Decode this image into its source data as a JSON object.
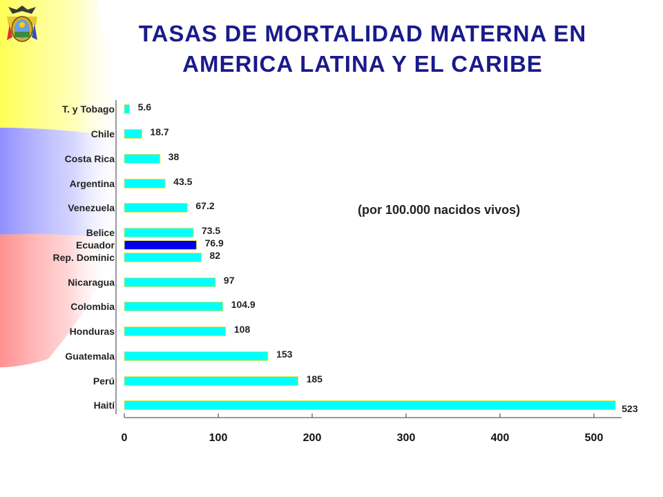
{
  "title_lines": [
    "TASAS DE MORTALIDAD MATERNA EN",
    "AMERICA LATINA Y EL CARIBE"
  ],
  "subtitle": "(por 100.000 nacidos vivos)",
  "colors": {
    "bar": "#00ffff",
    "bar_highlight": "#0000ee",
    "bar_border": "#e6e64c",
    "title": "#1a1a8c",
    "flag_yellow": "#ffff66",
    "flag_blue": "#9999ff",
    "flag_red": "#ff9999"
  },
  "chart_data": {
    "type": "bar",
    "orientation": "horizontal",
    "title": "TASAS DE MORTALIDAD MATERNA EN AMERICA LATINA Y EL CARIBE",
    "subtitle": "(por 100.000 nacidos vivos)",
    "xlabel": "",
    "ylabel": "",
    "xlim": [
      0,
      530
    ],
    "xticks": [
      0,
      100,
      200,
      300,
      400,
      500
    ],
    "grid": false,
    "highlight": "Ecuador",
    "categories": [
      "T. y Tobago",
      "Chile",
      "Costa Rica",
      "Argentina",
      "Venezuela",
      "Belice",
      "Ecuador",
      "Rep. Dominic",
      "Nicaragua",
      "Colombia",
      "Honduras",
      "Guatemala",
      "Perú",
      "Haití"
    ],
    "values": [
      5.6,
      18.7,
      38,
      43.5,
      67.2,
      73.5,
      76.9,
      82,
      97,
      104.9,
      108,
      153,
      185,
      523
    ],
    "value_labels": [
      "5.6",
      "18.7",
      "38",
      "43.5",
      "67.2",
      "73.5",
      "76.9",
      "82",
      "97",
      "104.9",
      "108",
      "153",
      "185",
      "523"
    ]
  }
}
